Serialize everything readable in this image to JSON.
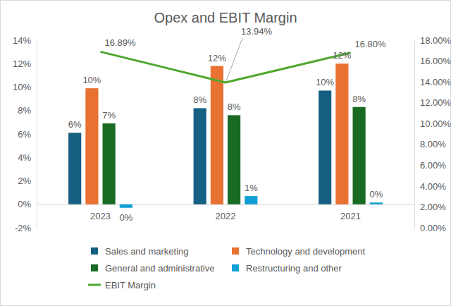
{
  "chart_data": {
    "type": "bar",
    "title": "Opex and EBIT Margin",
    "categories": [
      "2023",
      "2022",
      "2021"
    ],
    "series": [
      {
        "name": "Sales and marketing",
        "color": "#156082",
        "values": [
          6.1,
          8.2,
          9.7
        ],
        "value_labels": [
          "6%",
          "8%",
          "10%"
        ]
      },
      {
        "name": "Technology and development",
        "color": "#e97132",
        "values": [
          9.9,
          11.8,
          12.0
        ],
        "value_labels": [
          "10%",
          "12%",
          "12%"
        ]
      },
      {
        "name": "General and administrative",
        "color": "#196b24",
        "values": [
          6.9,
          7.6,
          8.3
        ],
        "value_labels": [
          "7%",
          "8%",
          "8%"
        ]
      },
      {
        "name": "Restructuring and other",
        "color": "#0f9ed5",
        "values": [
          -0.3,
          0.7,
          0.15
        ],
        "value_labels": [
          "0%",
          "1%",
          "0%"
        ]
      },
      {
        "name": "EBIT Margin",
        "color": "#4ea72e",
        "type": "line",
        "axis": "y2",
        "values": [
          16.89,
          13.94,
          16.8
        ],
        "value_labels": [
          "16.89%",
          "13.94%",
          "16.80%"
        ]
      }
    ],
    "ylim": [
      -2,
      14
    ],
    "yticks": [
      {
        "value": -2,
        "label": "-2%"
      },
      {
        "value": 0,
        "label": "0%"
      },
      {
        "value": 2,
        "label": "2%"
      },
      {
        "value": 4,
        "label": "4%"
      },
      {
        "value": 6,
        "label": "6%"
      },
      {
        "value": 8,
        "label": "8%"
      },
      {
        "value": 10,
        "label": "10%"
      },
      {
        "value": 12,
        "label": "12%"
      },
      {
        "value": 14,
        "label": "14%"
      }
    ],
    "y2lim": [
      0,
      18
    ],
    "y2ticks": [
      {
        "value": 0,
        "label": "0.00%"
      },
      {
        "value": 2,
        "label": "2.00%"
      },
      {
        "value": 4,
        "label": "4.00%"
      },
      {
        "value": 6,
        "label": "6.00%"
      },
      {
        "value": 8,
        "label": "8.00%"
      },
      {
        "value": 10,
        "label": "10.00%"
      },
      {
        "value": 12,
        "label": "12.00%"
      },
      {
        "value": 14,
        "label": "14.00%"
      },
      {
        "value": 16,
        "label": "16.00%"
      },
      {
        "value": 18,
        "label": "18.00%"
      }
    ],
    "grid": false,
    "legend": "bottom",
    "data_labels": true
  }
}
